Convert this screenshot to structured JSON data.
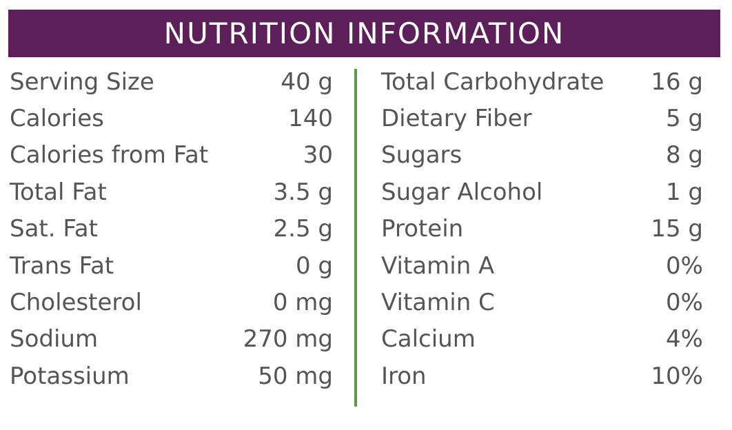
{
  "colors": {
    "header_background": "#5c1f5a",
    "header_text": "#ffffff",
    "divider": "#5a9a48",
    "body_text": "#555555"
  },
  "header": {
    "title": "NUTRITION INFORMATION"
  },
  "left_column": [
    {
      "label": "Serving Size",
      "value": "40 g"
    },
    {
      "label": "Calories",
      "value": "140"
    },
    {
      "label": "Calories from Fat",
      "value": "30"
    },
    {
      "label": "Total Fat",
      "value": "3.5 g"
    },
    {
      "label": "Sat. Fat",
      "value": "2.5 g"
    },
    {
      "label": "Trans Fat",
      "value": "0 g"
    },
    {
      "label": "Cholesterol",
      "value": "0 mg"
    },
    {
      "label": "Sodium",
      "value": "270 mg"
    },
    {
      "label": "Potassium",
      "value": "50 mg"
    }
  ],
  "right_column": [
    {
      "label": "Total Carbohydrate",
      "value": "16 g"
    },
    {
      "label": "Dietary Fiber",
      "value": "5 g"
    },
    {
      "label": "Sugars",
      "value": "8 g"
    },
    {
      "label": "Sugar Alcohol",
      "value": "1 g"
    },
    {
      "label": "Protein",
      "value": "15 g"
    },
    {
      "label": "Vitamin A",
      "value": "0%"
    },
    {
      "label": "Vitamin C",
      "value": "0%"
    },
    {
      "label": "Calcium",
      "value": "4%"
    },
    {
      "label": "Iron",
      "value": "10%"
    }
  ]
}
